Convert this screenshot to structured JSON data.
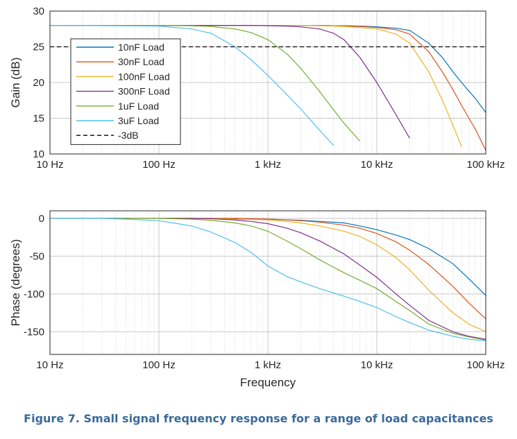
{
  "chart_data": [
    {
      "type": "line",
      "xscale": "log",
      "xlim": [
        10,
        100000
      ],
      "ylim": [
        10,
        30
      ],
      "ylabel": "Gain (dB)",
      "xticks": [
        10,
        100,
        1000,
        10000,
        100000
      ],
      "xtick_labels": [
        "10 Hz",
        "100 Hz",
        "1 kHz",
        "10 kHz",
        "100 kHz"
      ],
      "yticks": [
        10,
        15,
        20,
        25,
        30
      ],
      "ytick_labels": [
        "10",
        "15",
        "20",
        "25",
        "30"
      ],
      "grid": true,
      "legend_position": "top-left",
      "x": [
        10,
        100,
        200,
        300,
        500,
        700,
        1000,
        1500,
        2000,
        3000,
        4000,
        5000,
        7000,
        10000,
        15000,
        20000,
        30000,
        40000,
        50000,
        60000,
        70000,
        80000,
        100000
      ],
      "series": [
        {
          "name": "10nF Load",
          "color": "#0072BD",
          "dash": false,
          "values": [
            28,
            28,
            28,
            28,
            28,
            28,
            28,
            28,
            28,
            28,
            27.95,
            27.95,
            27.9,
            27.8,
            27.6,
            27.3,
            25.5,
            23.5,
            21.5,
            20,
            18.8,
            17.8,
            15.8
          ]
        },
        {
          "name": "30nF Load",
          "color": "#D95319",
          "dash": false,
          "values": [
            28,
            28,
            28,
            28,
            28,
            28,
            28,
            28,
            28,
            28,
            27.95,
            27.9,
            27.85,
            27.7,
            27.4,
            26.8,
            24.3,
            21.5,
            19,
            16.8,
            15,
            13.5,
            10.5
          ]
        },
        {
          "name": "100nF Load",
          "color": "#EDB120",
          "dash": false,
          "values": [
            28,
            28,
            28,
            28,
            28,
            28,
            28,
            28,
            28,
            27.95,
            27.9,
            27.85,
            27.7,
            27.5,
            26.8,
            25.5,
            21.5,
            17.5,
            14,
            11,
            null,
            null,
            null
          ]
        },
        {
          "name": "300nF Load",
          "color": "#7E2F8E",
          "dash": false,
          "values": [
            28,
            28,
            28,
            28,
            28,
            28,
            27.95,
            27.9,
            27.8,
            27.5,
            26.9,
            26,
            23.5,
            20,
            15.5,
            12.2,
            null,
            null,
            null,
            null,
            null,
            null,
            null
          ]
        },
        {
          "name": "1uF Load",
          "color": "#77AC30",
          "dash": false,
          "values": [
            28,
            28,
            27.95,
            27.85,
            27.5,
            27,
            26,
            24,
            22,
            18.7,
            16.2,
            14.3,
            11.8,
            null,
            null,
            null,
            null,
            null,
            null,
            null,
            null,
            null,
            null
          ]
        },
        {
          "name": "3uF Load",
          "color": "#4DBEEE",
          "dash": false,
          "values": [
            28,
            27.9,
            27.5,
            26.9,
            25,
            23.2,
            21,
            18.3,
            16.3,
            13.3,
            11.2,
            null,
            null,
            null,
            null,
            null,
            null,
            null,
            null,
            null,
            null,
            null,
            null
          ]
        },
        {
          "name": "-3dB",
          "color": "#000000",
          "dash": true,
          "values": [
            25,
            25,
            25,
            25,
            25,
            25,
            25,
            25,
            25,
            25,
            25,
            25,
            25,
            25,
            25,
            25,
            25,
            25,
            25,
            25,
            25,
            25,
            25
          ]
        }
      ]
    },
    {
      "type": "line",
      "xscale": "log",
      "xlim": [
        10,
        100000
      ],
      "ylim": [
        -180,
        10
      ],
      "ylabel": "Phase (degrees)",
      "xlabel": "Frequency",
      "xticks": [
        10,
        100,
        1000,
        10000,
        100000
      ],
      "xtick_labels": [
        "10 Hz",
        "100 Hz",
        "1 kHz",
        "10 kHz",
        "100 kHz"
      ],
      "yticks": [
        0,
        -50,
        -100,
        -150
      ],
      "ytick_labels": [
        "0",
        "-50",
        "-100",
        "-150"
      ],
      "grid": true,
      "x": [
        10,
        30,
        50,
        100,
        200,
        300,
        500,
        700,
        1000,
        1500,
        2000,
        3000,
        5000,
        7000,
        10000,
        15000,
        20000,
        30000,
        50000,
        70000,
        100000
      ],
      "series": [
        {
          "name": "10nF Load",
          "color": "#0072BD",
          "values": [
            0,
            0,
            0,
            0,
            0,
            0,
            0,
            -0.5,
            -1,
            -2,
            -2.5,
            -4,
            -6,
            -10,
            -15,
            -22,
            -28,
            -40,
            -60,
            -80,
            -102
          ]
        },
        {
          "name": "30nF Load",
          "color": "#D95319",
          "values": [
            0,
            0,
            0,
            0,
            0,
            0,
            0,
            -0.5,
            -1,
            -2,
            -3,
            -5,
            -9,
            -13,
            -20,
            -31,
            -42,
            -61,
            -90,
            -112,
            -133
          ]
        },
        {
          "name": "100nF Load",
          "color": "#EDB120",
          "values": [
            0,
            0,
            0,
            0,
            0,
            0,
            -1,
            -1.5,
            -2,
            -4,
            -6,
            -10,
            -17,
            -24,
            -35,
            -52,
            -68,
            -95,
            -125,
            -140,
            -150
          ]
        },
        {
          "name": "300nF Load",
          "color": "#7E2F8E",
          "values": [
            0,
            0,
            0,
            0,
            0,
            -0.5,
            -2,
            -4,
            -7,
            -13,
            -19,
            -30,
            -47,
            -62,
            -78,
            -100,
            -115,
            -135,
            -150,
            -156,
            -160
          ]
        },
        {
          "name": "1uF Load",
          "color": "#77AC30",
          "values": [
            0,
            0,
            0,
            0,
            -1,
            -2.5,
            -6,
            -10,
            -17,
            -30,
            -40,
            -55,
            -72,
            -82,
            -93,
            -110,
            -122,
            -140,
            -152,
            -157,
            -161
          ]
        },
        {
          "name": "3uF Load",
          "color": "#4DBEEE",
          "values": [
            0,
            0,
            -1,
            -3,
            -10,
            -18,
            -32,
            -45,
            -63,
            -77,
            -84,
            -93,
            -103,
            -110,
            -118,
            -130,
            -138,
            -148,
            -156,
            -160,
            -162
          ]
        }
      ]
    }
  ],
  "caption": "Figure 7. Small signal frequency response for a range of load capacitances"
}
